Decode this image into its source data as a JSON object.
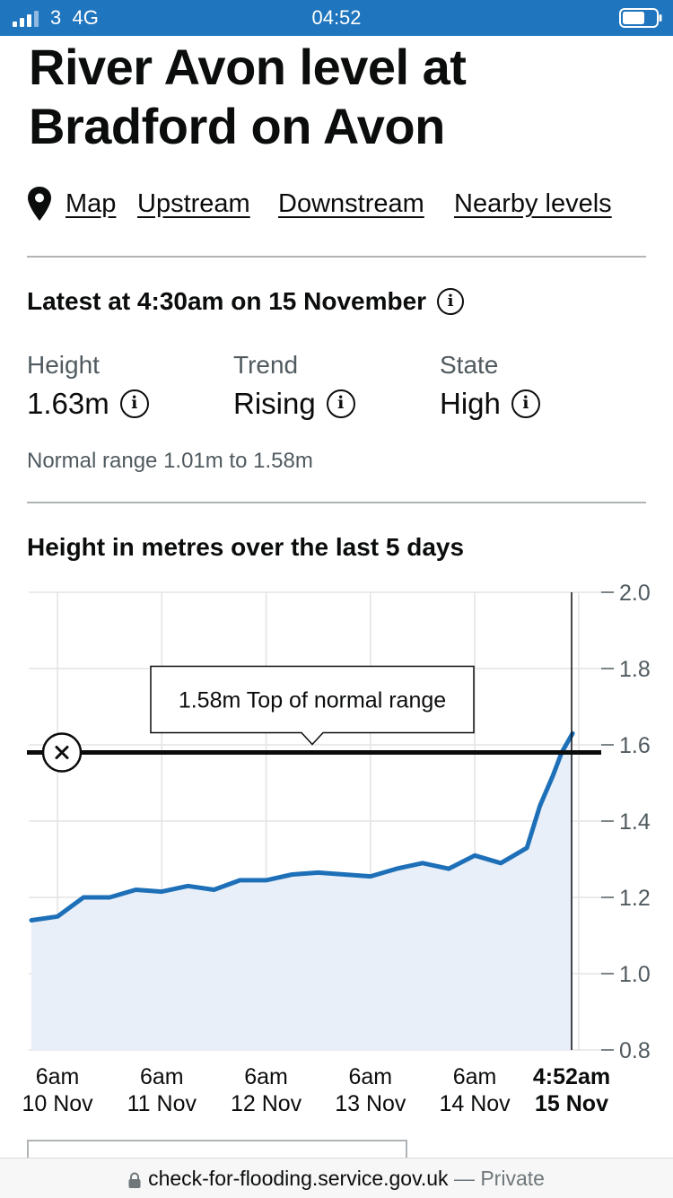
{
  "status_bar": {
    "carrier": "3",
    "network": "4G",
    "time": "04:52"
  },
  "page": {
    "title_line1": "River Avon level at",
    "title_line2": "Bradford on Avon"
  },
  "nav": {
    "icon": "map-pin-icon",
    "links": [
      "Map",
      "Upstream",
      "Downstream",
      "Nearby levels"
    ]
  },
  "latest": {
    "heading": "Latest at 4:30am on 15 November",
    "height_label": "Height",
    "height_value": "1.63m",
    "trend_label": "Trend",
    "trend_value": "Rising",
    "state_label": "State",
    "state_value": "High",
    "normal_range": "Normal range 1.01m to 1.58m"
  },
  "chart_title": "Height in metres over the last 5 days",
  "chart_data": {
    "type": "area",
    "ylim": [
      0.8,
      2.0
    ],
    "y_ticks": [
      "0.8",
      "1.0",
      "1.2",
      "1.4",
      "1.6",
      "1.8",
      "2.0"
    ],
    "x_ticks": [
      {
        "time": "6am",
        "date": "10 Nov"
      },
      {
        "time": "6am",
        "date": "11 Nov"
      },
      {
        "time": "6am",
        "date": "12 Nov"
      },
      {
        "time": "6am",
        "date": "13 Nov"
      },
      {
        "time": "6am",
        "date": "14 Nov"
      },
      {
        "time": "4:52am",
        "date": "15 Nov",
        "current": true
      }
    ],
    "reference_line": {
      "value": 1.58,
      "label": "1.58m Top of normal range"
    },
    "series": [
      {
        "x": [
          "10 Nov 00:00",
          "10 Nov 06:00",
          "10 Nov 12:00",
          "10 Nov 18:00",
          "11 Nov 00:00",
          "11 Nov 06:00",
          "11 Nov 12:00",
          "11 Nov 18:00",
          "12 Nov 00:00",
          "12 Nov 06:00",
          "12 Nov 12:00",
          "12 Nov 18:00",
          "13 Nov 00:00",
          "13 Nov 06:00",
          "13 Nov 12:00",
          "13 Nov 18:00",
          "14 Nov 00:00",
          "14 Nov 06:00",
          "14 Nov 12:00",
          "14 Nov 15:00",
          "14 Nov 18:00",
          "14 Nov 21:00",
          "15 Nov 00:00",
          "15 Nov 02:00",
          "15 Nov 04:30"
        ],
        "y": [
          1.14,
          1.15,
          1.2,
          1.2,
          1.22,
          1.215,
          1.23,
          1.22,
          1.245,
          1.245,
          1.26,
          1.265,
          1.26,
          1.255,
          1.275,
          1.29,
          1.275,
          1.31,
          1.29,
          1.31,
          1.33,
          1.44,
          1.52,
          1.58,
          1.63
        ]
      }
    ],
    "grid": true,
    "line_color": "#1d70b8",
    "fill_color": "#e8eff8"
  },
  "url_bar": {
    "url": "check-for-flooding.service.gov.uk",
    "suffix": " — Private"
  }
}
